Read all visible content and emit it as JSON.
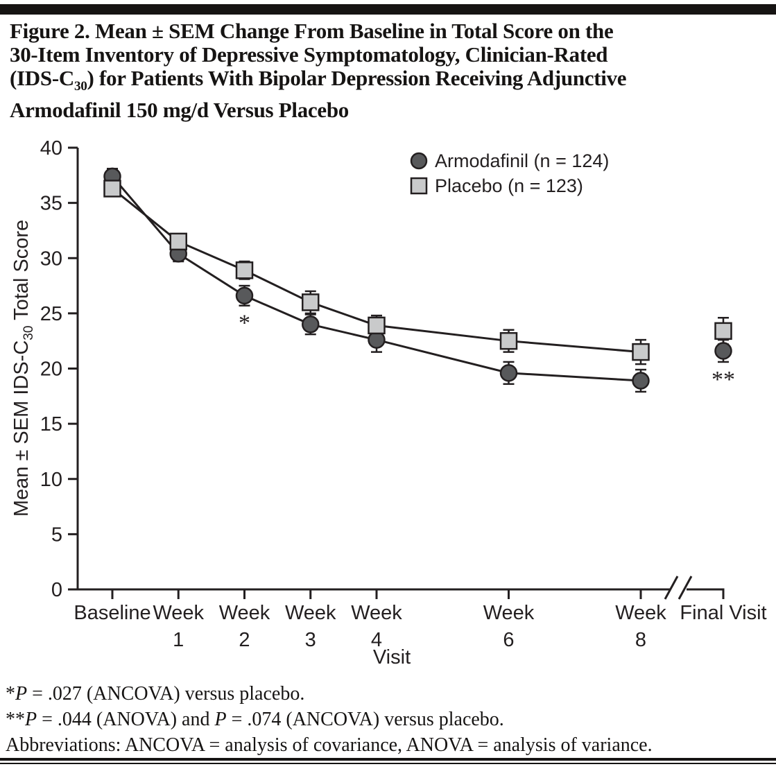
{
  "figure_title": {
    "lines": [
      {
        "segments": [
          {
            "t": "Figure 2. Mean ± SEM Change From Baseline in Total Score on the"
          }
        ]
      },
      {
        "segments": [
          {
            "t": "30-Item Inventory of Depressive Symptomatology, Clinician-Rated"
          }
        ]
      },
      {
        "segments": [
          {
            "t": "(IDS-C"
          },
          {
            "t": "30",
            "sub": true
          },
          {
            "t": ") for Patients With Bipolar Depression Receiving Adjunctive"
          }
        ]
      },
      {
        "segments": [
          {
            "t": "Armodafinil 150 mg/d Versus Placebo"
          }
        ]
      }
    ]
  },
  "chart_data": {
    "type": "line",
    "ylabel": {
      "pre": "Mean ± SEM IDS-C",
      "sub": "30",
      "post": " Total Score"
    },
    "xlabel": "Visit",
    "ylim": [
      0,
      40
    ],
    "ytick_step": 5,
    "grid": false,
    "legend_position": "top-right-inside",
    "x_categories": [
      {
        "line1": "Baseline",
        "week": 0
      },
      {
        "line1": "Week",
        "line2": "1",
        "week": 1
      },
      {
        "line1": "Week",
        "line2": "2",
        "week": 2
      },
      {
        "line1": "Week",
        "line2": "3",
        "week": 3
      },
      {
        "line1": "Week",
        "line2": "4",
        "week": 4
      },
      {
        "line1": "Week",
        "line2": "6",
        "week": 6
      },
      {
        "line1": "Week",
        "line2": "8",
        "week": 8
      },
      {
        "line1": "Final Visit",
        "after_break": true
      }
    ],
    "axis_break": {
      "present": true,
      "between": [
        "Week 8",
        "Final Visit"
      ]
    },
    "series": [
      {
        "name": "Armodafinil (n = 124)",
        "marker": "circle",
        "marker_fill": "#58595b",
        "values": [
          37.4,
          30.4,
          26.6,
          24.0,
          22.6,
          19.6,
          18.9,
          21.6
        ],
        "sem": [
          0.7,
          0.7,
          0.9,
          0.9,
          1.1,
          1.0,
          1.0,
          1.0
        ]
      },
      {
        "name": "Placebo (n = 123)",
        "marker": "square",
        "marker_fill": "#c9cacb",
        "values": [
          36.3,
          31.5,
          28.9,
          26.0,
          23.9,
          22.5,
          21.5,
          23.4
        ],
        "sem": [
          0.6,
          0.7,
          0.8,
          1.0,
          0.9,
          1.0,
          1.1,
          1.2
        ]
      }
    ],
    "line_color": "#231f20",
    "annotations": [
      {
        "text": "*",
        "x_index": 2,
        "series_index": 0
      },
      {
        "text": "**",
        "x_index": 7,
        "series_index": 0
      }
    ]
  },
  "footnotes": [
    {
      "segments": [
        {
          "t": "*"
        },
        {
          "t": "P",
          "i": true
        },
        {
          "t": " = .027 (ANCOVA) versus placebo."
        }
      ]
    },
    {
      "segments": [
        {
          "t": "**"
        },
        {
          "t": "P",
          "i": true
        },
        {
          "t": " = .044 (ANOVA) and "
        },
        {
          "t": "P",
          "i": true
        },
        {
          "t": " = .074 (ANCOVA) versus placebo."
        }
      ]
    },
    {
      "segments": [
        {
          "t": "Abbreviations: ANCOVA = analysis of covariance, ANOVA = analysis of variance."
        }
      ]
    }
  ]
}
